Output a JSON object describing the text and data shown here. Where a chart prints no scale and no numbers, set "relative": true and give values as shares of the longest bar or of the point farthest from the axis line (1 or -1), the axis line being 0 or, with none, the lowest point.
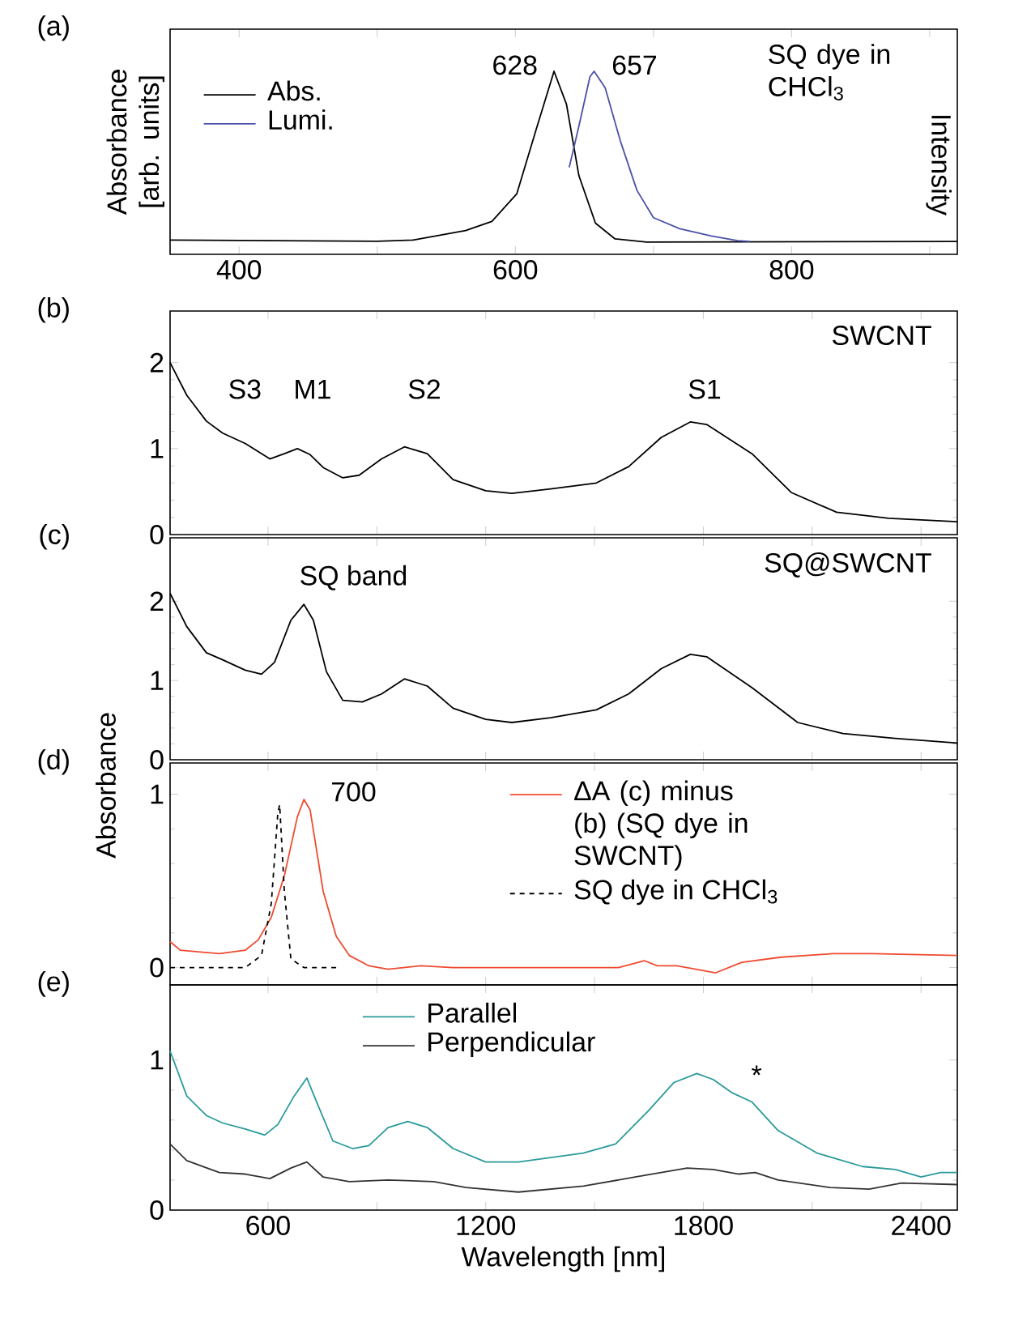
{
  "chart_data": [
    {
      "type": "line",
      "title": "(a)",
      "ylabel": "Absorbance [arb. units]",
      "y2label": "Intensity",
      "relative": true,
      "xlim": [
        350,
        920
      ],
      "xticks": [
        400,
        {
          "value": 500,
          "label": null
        },
        600,
        {
          "value": 700,
          "label": null
        },
        800,
        {
          "value": 900,
          "label": null
        }
      ],
      "tick_labels": "x",
      "legend": "top left",
      "annotations": [
        "628",
        "657",
        "SQ dye in CHCl$_{3}$"
      ],
      "series": [
        {
          "name": "Abs.",
          "color": "#000000",
          "x": [
            350,
            500,
            526,
            564,
            583,
            601,
            615,
            628,
            637,
            646,
            658,
            672,
            695,
            920
          ],
          "values": [
            0.078,
            0.071,
            0.078,
            0.13,
            0.18,
            0.33,
            0.68,
            1.0,
            0.82,
            0.43,
            0.17,
            0.085,
            0.067,
            0.07
          ]
        },
        {
          "name": "Lumi.",
          "color": "#4b50a8",
          "x": [
            639,
            646,
            654,
            657,
            665,
            676,
            688,
            700,
            719,
            742,
            761,
            770
          ],
          "values": [
            0.475,
            0.7,
            0.97,
            1.0,
            0.91,
            0.62,
            0.35,
            0.2,
            0.14,
            0.1,
            0.075,
            0.07
          ]
        }
      ]
    },
    {
      "type": "line",
      "title": "(b)",
      "xlim": [
        330,
        2500
      ],
      "ylim": [
        0,
        2.6
      ],
      "yticks": [
        0,
        1,
        2
      ],
      "xticks": [
        600,
        {
          "value": 900,
          "label": null
        },
        1200,
        {
          "value": 1500,
          "label": null
        },
        1800,
        {
          "value": 2100,
          "label": null
        },
        2400
      ],
      "tick_labels": "y",
      "color": "#000000",
      "annotations": [
        "S3",
        "M1",
        "S2",
        "S1",
        "SWCNT"
      ],
      "x": [
        330,
        376,
        430,
        475,
        537,
        605,
        645,
        681,
        716,
        752,
        806,
        851,
        913,
        976,
        1039,
        1110,
        1200,
        1272,
        1379,
        1505,
        1594,
        1684,
        1764,
        1809,
        1934,
        2042,
        2167,
        2311,
        2500
      ],
      "values": [
        2.0,
        1.62,
        1.32,
        1.18,
        1.06,
        0.88,
        0.94,
        1.0,
        0.93,
        0.78,
        0.66,
        0.69,
        0.88,
        1.02,
        0.94,
        0.64,
        0.51,
        0.48,
        0.53,
        0.6,
        0.79,
        1.13,
        1.31,
        1.28,
        0.94,
        0.49,
        0.26,
        0.19,
        0.15
      ]
    },
    {
      "type": "line",
      "title": "(c)",
      "xlim": [
        330,
        2500
      ],
      "ylim": [
        0,
        2.8
      ],
      "yticks": [
        0,
        1,
        2
      ],
      "xticks": [
        600,
        {
          "value": 900,
          "label": null
        },
        1200,
        {
          "value": 1500,
          "label": null
        },
        1800,
        {
          "value": 2100,
          "label": null
        },
        2400
      ],
      "tick_labels": "y",
      "color": "#000000",
      "annotations": [
        "SQ band",
        "SQ@SWCNT"
      ],
      "x": [
        330,
        376,
        430,
        475,
        537,
        582,
        618,
        663,
        699,
        725,
        761,
        806,
        860,
        913,
        976,
        1039,
        1110,
        1200,
        1272,
        1379,
        1505,
        1594,
        1684,
        1764,
        1809,
        1934,
        2060,
        2185,
        2329,
        2500
      ],
      "values": [
        2.1,
        1.68,
        1.35,
        1.26,
        1.13,
        1.08,
        1.23,
        1.76,
        1.96,
        1.76,
        1.11,
        0.75,
        0.73,
        0.83,
        1.02,
        0.93,
        0.65,
        0.51,
        0.47,
        0.53,
        0.63,
        0.83,
        1.15,
        1.33,
        1.3,
        0.91,
        0.47,
        0.33,
        0.27,
        0.21
      ]
    },
    {
      "type": "line",
      "title": "(d)",
      "ylabel": "Absorbance",
      "xlim": [
        330,
        2500
      ],
      "ylim": [
        -0.1,
        1.18
      ],
      "yticks": [
        0,
        1
      ],
      "xticks": [
        600,
        {
          "value": 900,
          "label": null
        },
        1200,
        {
          "value": 1500,
          "label": null
        },
        1800,
        {
          "value": 2100,
          "label": null
        },
        2400
      ],
      "tick_labels": "y",
      "legend": "top right",
      "annotations": [
        "700"
      ],
      "series": [
        {
          "name": "ΔA (c) minus (b) (SQ dye in SWCNT)",
          "color": "#f04a30",
          "x": [
            330,
            358,
            466,
            537,
            573,
            609,
            645,
            681,
            699,
            716,
            752,
            788,
            824,
            878,
            931,
            1021,
            1110,
            1469,
            1566,
            1602,
            1637,
            1673,
            1727,
            1834,
            1906,
            2014,
            2157,
            2264,
            2500
          ],
          "values": [
            0.15,
            0.1,
            0.08,
            0.1,
            0.16,
            0.29,
            0.53,
            0.87,
            0.97,
            0.91,
            0.44,
            0.18,
            0.07,
            0.01,
            -0.01,
            0.01,
            0,
            0,
            0,
            0.02,
            0.04,
            0.01,
            0.01,
            -0.03,
            0.03,
            0.06,
            0.08,
            0.08,
            0.07
          ]
        },
        {
          "name": "SQ dye in CHCl$_{3}$",
          "color": "#000000",
          "line_style": "dashed",
          "x": [
            330,
            537,
            582,
            609,
            627,
            632,
            645,
            663,
            699,
            797
          ],
          "values": [
            0,
            0,
            0.07,
            0.37,
            0.89,
            0.94,
            0.44,
            0.05,
            0,
            0
          ]
        }
      ]
    },
    {
      "type": "line",
      "title": "(e)",
      "xlabel": "Wavelength [nm]",
      "xlim": [
        330,
        2500
      ],
      "ylim": [
        0,
        1.5
      ],
      "yticks": [
        0,
        1
      ],
      "xticks": [
        600,
        {
          "value": 900,
          "label": null
        },
        1200,
        {
          "value": 1500,
          "label": null
        },
        1800,
        {
          "value": 2100,
          "label": null
        },
        2400
      ],
      "legend": "top",
      "annotations": [
        "*"
      ],
      "series": [
        {
          "name": "Parallel",
          "color": "#2a9a9a",
          "x": [
            330,
            376,
            430,
            475,
            537,
            591,
            627,
            672,
            707,
            734,
            779,
            833,
            878,
            931,
            985,
            1039,
            1110,
            1200,
            1290,
            1469,
            1558,
            1648,
            1719,
            1782,
            1827,
            1880,
            1934,
            2006,
            2113,
            2239,
            2329,
            2400,
            2454,
            2500
          ],
          "values": [
            1.06,
            0.76,
            0.63,
            0.58,
            0.54,
            0.5,
            0.57,
            0.76,
            0.88,
            0.72,
            0.46,
            0.41,
            0.43,
            0.55,
            0.59,
            0.55,
            0.41,
            0.32,
            0.32,
            0.38,
            0.44,
            0.66,
            0.85,
            0.91,
            0.87,
            0.78,
            0.72,
            0.53,
            0.38,
            0.29,
            0.27,
            0.22,
            0.25,
            0.25
          ]
        },
        {
          "name": "Perpendicular",
          "color": "#333333",
          "x": [
            330,
            376,
            466,
            537,
            605,
            663,
            707,
            752,
            824,
            931,
            1057,
            1146,
            1290,
            1469,
            1612,
            1755,
            1827,
            1898,
            1943,
            2006,
            2149,
            2257,
            2346,
            2500
          ],
          "values": [
            0.44,
            0.33,
            0.25,
            0.24,
            0.21,
            0.28,
            0.32,
            0.22,
            0.19,
            0.2,
            0.19,
            0.15,
            0.12,
            0.16,
            0.22,
            0.28,
            0.27,
            0.24,
            0.25,
            0.2,
            0.15,
            0.14,
            0.18,
            0.17
          ]
        }
      ]
    }
  ]
}
